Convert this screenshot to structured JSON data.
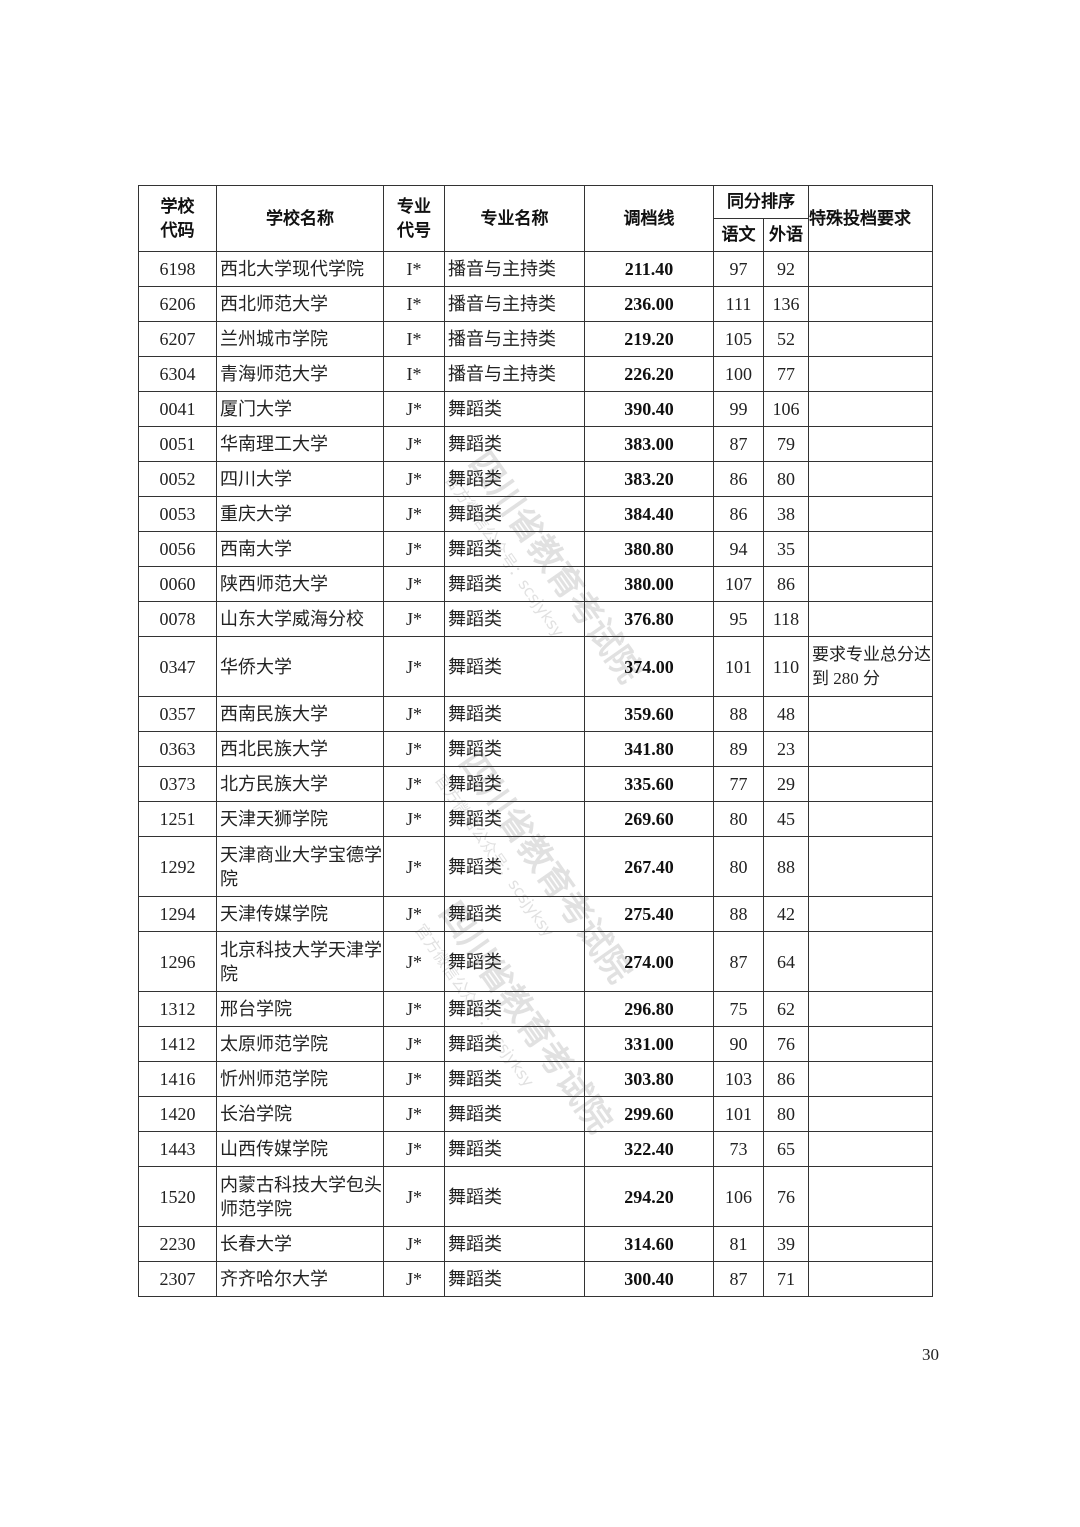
{
  "headers": {
    "school_code": "学校代码",
    "school_name": "学校名称",
    "major_code": "专业代号",
    "major_name": "专业名称",
    "cutoff": "调档线",
    "tie_break": "同分排序",
    "chinese": "语文",
    "foreign": "外语",
    "special": "特殊投档要求"
  },
  "rows": [
    {
      "code": "6198",
      "school": "西北大学现代学院",
      "mcode": "I*",
      "major": "播音与主持类",
      "score": "211.40",
      "cn": "97",
      "fl": "92",
      "note": ""
    },
    {
      "code": "6206",
      "school": "西北师范大学",
      "mcode": "I*",
      "major": "播音与主持类",
      "score": "236.00",
      "cn": "111",
      "fl": "136",
      "note": ""
    },
    {
      "code": "6207",
      "school": "兰州城市学院",
      "mcode": "I*",
      "major": "播音与主持类",
      "score": "219.20",
      "cn": "105",
      "fl": "52",
      "note": ""
    },
    {
      "code": "6304",
      "school": "青海师范大学",
      "mcode": "I*",
      "major": "播音与主持类",
      "score": "226.20",
      "cn": "100",
      "fl": "77",
      "note": ""
    },
    {
      "code": "0041",
      "school": "厦门大学",
      "mcode": "J*",
      "major": "舞蹈类",
      "score": "390.40",
      "cn": "99",
      "fl": "106",
      "note": ""
    },
    {
      "code": "0051",
      "school": "华南理工大学",
      "mcode": "J*",
      "major": "舞蹈类",
      "score": "383.00",
      "cn": "87",
      "fl": "79",
      "note": ""
    },
    {
      "code": "0052",
      "school": "四川大学",
      "mcode": "J*",
      "major": "舞蹈类",
      "score": "383.20",
      "cn": "86",
      "fl": "80",
      "note": ""
    },
    {
      "code": "0053",
      "school": "重庆大学",
      "mcode": "J*",
      "major": "舞蹈类",
      "score": "384.40",
      "cn": "86",
      "fl": "38",
      "note": ""
    },
    {
      "code": "0056",
      "school": "西南大学",
      "mcode": "J*",
      "major": "舞蹈类",
      "score": "380.80",
      "cn": "94",
      "fl": "35",
      "note": ""
    },
    {
      "code": "0060",
      "school": "陕西师范大学",
      "mcode": "J*",
      "major": "舞蹈类",
      "score": "380.00",
      "cn": "107",
      "fl": "86",
      "note": ""
    },
    {
      "code": "0078",
      "school": "山东大学威海分校",
      "mcode": "J*",
      "major": "舞蹈类",
      "score": "376.80",
      "cn": "95",
      "fl": "118",
      "note": ""
    },
    {
      "code": "0347",
      "school": "华侨大学",
      "mcode": "J*",
      "major": "舞蹈类",
      "score": "374.00",
      "cn": "101",
      "fl": "110",
      "note": "要求专业总分达到 280 分",
      "tall": true
    },
    {
      "code": "0357",
      "school": "西南民族大学",
      "mcode": "J*",
      "major": "舞蹈类",
      "score": "359.60",
      "cn": "88",
      "fl": "48",
      "note": ""
    },
    {
      "code": "0363",
      "school": "西北民族大学",
      "mcode": "J*",
      "major": "舞蹈类",
      "score": "341.80",
      "cn": "89",
      "fl": "23",
      "note": ""
    },
    {
      "code": "0373",
      "school": "北方民族大学",
      "mcode": "J*",
      "major": "舞蹈类",
      "score": "335.60",
      "cn": "77",
      "fl": "29",
      "note": ""
    },
    {
      "code": "1251",
      "school": "天津天狮学院",
      "mcode": "J*",
      "major": "舞蹈类",
      "score": "269.60",
      "cn": "80",
      "fl": "45",
      "note": ""
    },
    {
      "code": "1292",
      "school": "天津商业大学宝德学院",
      "mcode": "J*",
      "major": "舞蹈类",
      "score": "267.40",
      "cn": "80",
      "fl": "88",
      "note": "",
      "tall": true
    },
    {
      "code": "1294",
      "school": "天津传媒学院",
      "mcode": "J*",
      "major": "舞蹈类",
      "score": "275.40",
      "cn": "88",
      "fl": "42",
      "note": ""
    },
    {
      "code": "1296",
      "school": "北京科技大学天津学院",
      "mcode": "J*",
      "major": "舞蹈类",
      "score": "274.00",
      "cn": "87",
      "fl": "64",
      "note": "",
      "tall": true
    },
    {
      "code": "1312",
      "school": "邢台学院",
      "mcode": "J*",
      "major": "舞蹈类",
      "score": "296.80",
      "cn": "75",
      "fl": "62",
      "note": ""
    },
    {
      "code": "1412",
      "school": "太原师范学院",
      "mcode": "J*",
      "major": "舞蹈类",
      "score": "331.00",
      "cn": "90",
      "fl": "76",
      "note": ""
    },
    {
      "code": "1416",
      "school": "忻州师范学院",
      "mcode": "J*",
      "major": "舞蹈类",
      "score": "303.80",
      "cn": "103",
      "fl": "86",
      "note": ""
    },
    {
      "code": "1420",
      "school": "长治学院",
      "mcode": "J*",
      "major": "舞蹈类",
      "score": "299.60",
      "cn": "101",
      "fl": "80",
      "note": ""
    },
    {
      "code": "1443",
      "school": "山西传媒学院",
      "mcode": "J*",
      "major": "舞蹈类",
      "score": "322.40",
      "cn": "73",
      "fl": "65",
      "note": ""
    },
    {
      "code": "1520",
      "school": "内蒙古科技大学包头师范学院",
      "mcode": "J*",
      "major": "舞蹈类",
      "score": "294.20",
      "cn": "106",
      "fl": "76",
      "note": "",
      "tall": true
    },
    {
      "code": "2230",
      "school": "长春大学",
      "mcode": "J*",
      "major": "舞蹈类",
      "score": "314.60",
      "cn": "81",
      "fl": "39",
      "note": ""
    },
    {
      "code": "2307",
      "school": "齐齐哈尔大学",
      "mcode": "J*",
      "major": "舞蹈类",
      "score": "300.40",
      "cn": "87",
      "fl": "71",
      "note": ""
    }
  ],
  "watermark": {
    "main": "四川省教育考试院",
    "sub": "官方微信公众号：scsjyksy"
  },
  "page_number": "30"
}
